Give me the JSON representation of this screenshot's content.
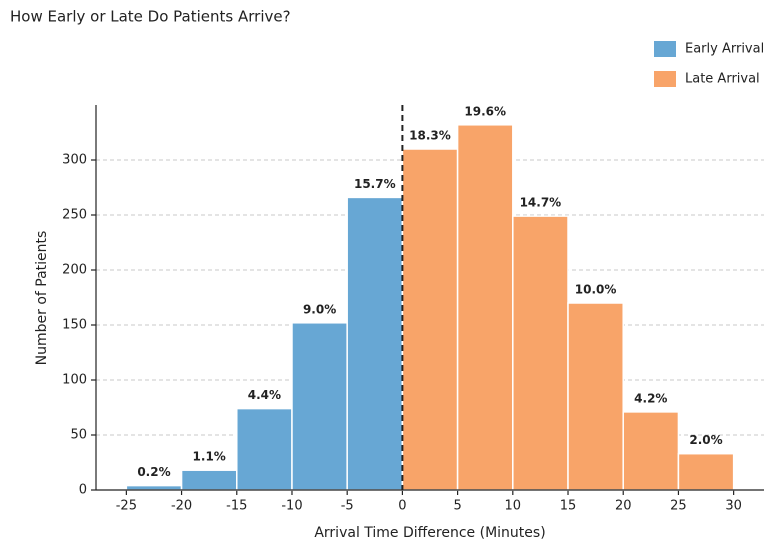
{
  "chart_data": {
    "type": "histogram",
    "title": "How Early or Late Do Patients Arrive?",
    "xlabel": "Arrival Time Difference (Minutes)",
    "ylabel": "Number of Patients",
    "series": [
      {
        "name": "Early Arrival",
        "color": "#67a7d4",
        "bins": [
          -25,
          -20,
          -15,
          -10,
          -5,
          0
        ],
        "values": [
          4,
          18,
          74,
          152,
          266
        ],
        "value_labels": [
          "0.2%",
          "1.1%",
          "4.4%",
          "9.0%",
          "15.7%"
        ]
      },
      {
        "name": "Late Arrival",
        "color": "#f8a469",
        "bins": [
          0,
          5,
          10,
          15,
          20,
          25,
          30
        ],
        "values": [
          310,
          332,
          249,
          170,
          71,
          33
        ],
        "value_labels": [
          "18.3%",
          "19.6%",
          "14.7%",
          "10.0%",
          "4.2%",
          "2.0%"
        ]
      }
    ],
    "vline": 0,
    "xlim": [
      -27.75,
      32.75
    ],
    "xticks": [
      -25,
      -20,
      -15,
      -10,
      -5,
      0,
      5,
      10,
      15,
      20,
      25,
      30
    ],
    "ylim": [
      0,
      350
    ],
    "yticks": [
      0,
      50,
      100,
      150,
      200,
      250,
      300
    ],
    "grid": true,
    "legend": "upper right"
  }
}
